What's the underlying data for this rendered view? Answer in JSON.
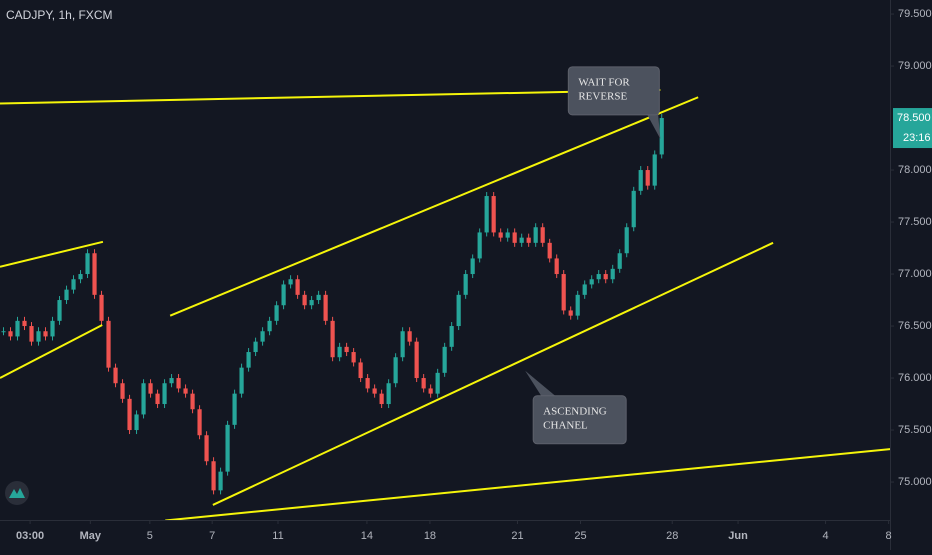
{
  "chart_data": {
    "type": "candlestick",
    "title": "CADJPY, 1h, FXCM",
    "series": [
      {
        "name": "CADJPY",
        "up_color": "#26a69a",
        "down_color": "#ef5350",
        "values": [
          76.45,
          76.4,
          76.55,
          76.5,
          76.35,
          76.45,
          76.4,
          76.55,
          76.75,
          76.85,
          76.95,
          77.0,
          77.2,
          76.8,
          76.55,
          76.1,
          75.95,
          75.8,
          75.5,
          75.65,
          75.95,
          75.85,
          75.75,
          75.95,
          76.0,
          75.9,
          75.85,
          75.7,
          75.45,
          75.2,
          74.92,
          75.1,
          75.55,
          75.85,
          76.1,
          76.25,
          76.35,
          76.45,
          76.55,
          76.7,
          76.9,
          76.95,
          76.8,
          76.7,
          76.75,
          76.8,
          76.55,
          76.2,
          76.3,
          76.25,
          76.15,
          76.0,
          75.9,
          75.85,
          75.75,
          75.95,
          76.2,
          76.45,
          76.35,
          76.0,
          75.9,
          75.85,
          76.05,
          76.3,
          76.5,
          76.8,
          77.0,
          77.15,
          77.4,
          77.75,
          77.4,
          77.35,
          77.4,
          77.3,
          77.35,
          77.3,
          77.45,
          77.3,
          77.15,
          77.0,
          76.65,
          76.6,
          76.8,
          76.9,
          76.95,
          77.0,
          76.95,
          77.05,
          77.2,
          77.45,
          77.8,
          78.0,
          77.85,
          78.15,
          78.5
        ]
      }
    ],
    "xlim": [
      -0.5,
      126.6
    ],
    "xticks": [
      {
        "value": 3.8,
        "label": "03:00"
      },
      {
        "value": 12.4,
        "label": "May"
      },
      {
        "value": 20.9,
        "label": "5"
      },
      {
        "value": 29.8,
        "label": "7"
      },
      {
        "value": 39.2,
        "label": "11"
      },
      {
        "value": 51.9,
        "label": "14"
      },
      {
        "value": 60.9,
        "label": "18"
      },
      {
        "value": 73.4,
        "label": "21"
      },
      {
        "value": 82.4,
        "label": "25"
      },
      {
        "value": 95.5,
        "label": "28"
      },
      {
        "value": 104.9,
        "label": "Jun"
      },
      {
        "value": 117.4,
        "label": "4"
      },
      {
        "value": 126.4,
        "label": "8"
      }
    ],
    "ylim": [
      74.635,
      79.635
    ],
    "yticks": [
      {
        "value": 75,
        "label": "75.000"
      },
      {
        "value": 75.5,
        "label": "75.500"
      },
      {
        "value": 76,
        "label": "76.000"
      },
      {
        "value": 76.5,
        "label": "76.500"
      },
      {
        "value": 77,
        "label": "77.000"
      },
      {
        "value": 77.5,
        "label": "77.500"
      },
      {
        "value": 78,
        "label": "78.000"
      },
      {
        "value": 79,
        "label": "79.000"
      },
      {
        "value": 79.5,
        "label": "79.500"
      }
    ],
    "last_price": {
      "value": 78.5,
      "label": "78.500"
    },
    "countdown": "23:16",
    "trendlines": [
      {
        "x": [
          -0.5,
          93.8
        ],
        "y": [
          78.64,
          78.77
        ]
      },
      {
        "x": [
          23.8,
          99.2
        ],
        "y": [
          76.6,
          78.7
        ]
      },
      {
        "x": [
          -0.5,
          14.1
        ],
        "y": [
          76.0,
          76.51
        ]
      },
      {
        "x": [
          -0.5,
          14.2
        ],
        "y": [
          77.07,
          77.31
        ]
      },
      {
        "x": [
          29.9,
          109.9
        ],
        "y": [
          74.78,
          77.3
        ]
      },
      {
        "x": [
          23.1,
          127.1
        ],
        "y": [
          74.63,
          75.32
        ]
      }
    ],
    "trendline_color": "#f5f50a",
    "annotations": [
      {
        "lines": [
          "WAIT FOR",
          "REVERSE"
        ],
        "x": 93.8,
        "y": 78.3
      },
      {
        "lines": [
          "ASCENDING",
          "CHANEL"
        ],
        "x": 74.5,
        "y": 76.07
      }
    ]
  }
}
